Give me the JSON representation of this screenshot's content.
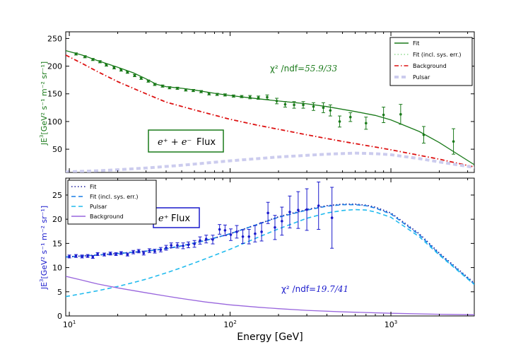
{
  "chart_data": [
    {
      "type": "line",
      "panel": "top",
      "title": "",
      "ylabel_prefix": "JE",
      "ylabel_sup": "3",
      "ylabel_units": "[GeV² s⁻¹ m⁻² sr⁻¹]",
      "xscale": "log",
      "xlim": [
        9.5,
        3300
      ],
      "ylim": [
        8,
        262
      ],
      "yticks": [
        50,
        100,
        150,
        200,
        250
      ],
      "color": "#1a7a1a",
      "annotation_chi2": "χ² /ndf",
      "annotation_chi2_value": "=55.9/33",
      "flux_box": {
        "particles": "e⁺ + e⁻",
        "word": "Flux"
      },
      "legend": {
        "position": "top-right",
        "entries": [
          {
            "label": "Fit",
            "style": "solid",
            "color": "#1a7a1a"
          },
          {
            "label": "Fit (incl. sys. err.)",
            "style": "dotted",
            "color": "#8fdc8f"
          },
          {
            "label": "Background",
            "style": "dashdot",
            "color": "#dd1111"
          },
          {
            "label": "Pulsar",
            "style": "dashed",
            "color": "#ccccee"
          }
        ]
      },
      "series": [
        {
          "name": "Fit",
          "style": "solid",
          "color": "#1a7a1a",
          "x": [
            9.5,
            12,
            15,
            20,
            25,
            30,
            35,
            40,
            50,
            60,
            80,
            100,
            150,
            200,
            300,
            400,
            600,
            800,
            1000,
            1500,
            2000,
            3300
          ],
          "y": [
            228,
            220,
            210,
            198,
            188,
            177,
            167,
            163,
            160,
            157,
            151,
            147,
            141,
            137,
            132,
            127,
            118,
            111,
            103,
            82,
            62,
            22
          ]
        },
        {
          "name": "Background",
          "style": "dashdot",
          "color": "#dd1111",
          "x": [
            9.5,
            12,
            15,
            20,
            30,
            40,
            60,
            100,
            150,
            200,
            300,
            500,
            800,
            1000,
            1500,
            2000,
            3300
          ],
          "y": [
            220,
            205,
            190,
            172,
            150,
            135,
            121,
            104,
            93,
            86,
            76,
            64,
            54,
            49,
            39,
            32,
            18
          ]
        },
        {
          "name": "Pulsar",
          "style": "dashed",
          "color": "#ccccee",
          "x": [
            9.5,
            15,
            20,
            30,
            50,
            100,
            200,
            400,
            600,
            800,
            1000,
            1500,
            2000,
            3300
          ],
          "y": [
            9,
            11,
            13,
            16,
            21,
            29,
            36,
            41,
            43,
            42,
            40,
            33,
            27,
            17
          ]
        },
        {
          "name": "Data",
          "style": "points",
          "color": "#1a7a1a",
          "x": [
            11,
            12.5,
            14,
            15.5,
            17,
            19,
            21,
            23,
            25.5,
            28,
            31,
            34,
            38,
            42,
            47,
            53,
            59,
            66,
            74,
            83,
            93,
            105,
            118,
            133,
            150,
            170,
            195,
            220,
            250,
            285,
            330,
            380,
            420,
            480,
            560,
            700,
            900,
            1150,
            1600,
            2450
          ],
          "y": [
            222,
            217,
            212,
            208,
            202,
            197,
            193,
            189,
            183,
            178,
            173,
            167,
            164,
            161,
            160,
            157,
            156,
            154,
            150,
            149,
            148,
            146,
            145,
            144,
            143,
            144,
            137,
            131,
            130,
            130,
            127,
            125,
            120,
            100,
            108,
            97,
            112,
            113,
            76,
            64
          ],
          "err": [
            2,
            2,
            2,
            2,
            2,
            2,
            2,
            2,
            2,
            2,
            2,
            2,
            2,
            2,
            2,
            2,
            2,
            2,
            2,
            2,
            2,
            2,
            2,
            3,
            3,
            4,
            5,
            5,
            6,
            6,
            7,
            9,
            10,
            10,
            8,
            11,
            14,
            18,
            15,
            23
          ]
        }
      ]
    },
    {
      "type": "line",
      "panel": "bottom",
      "title": "",
      "xlabel": "Energy [GeV]",
      "ylabel_prefix": "JE",
      "ylabel_sup": "3",
      "ylabel_units": "[GeV² s⁻¹ m⁻² sr⁻¹]",
      "xscale": "log",
      "xlim": [
        9.5,
        3300
      ],
      "ylim": [
        0,
        28.5
      ],
      "yticks": [
        0,
        5,
        10,
        15,
        20,
        25
      ],
      "xticks": [
        {
          "value": 10,
          "base": "10",
          "exp": "1"
        },
        {
          "value": 100,
          "base": "10",
          "exp": "2"
        },
        {
          "value": 1000,
          "base": "10",
          "exp": "3"
        }
      ],
      "color": "#1a1acc",
      "annotation_chi2": "χ² /ndf",
      "annotation_chi2_value": "=19.7/41",
      "flux_box": {
        "particles": "e⁺",
        "word": "Flux"
      },
      "legend": {
        "position": "top-left",
        "entries": [
          {
            "label": "Fit",
            "style": "dotted",
            "color": "#1a1a99"
          },
          {
            "label": "Fit (incl. sys. err.)",
            "style": "dashed",
            "color": "#1a7fe6"
          },
          {
            "label": "Pulsar",
            "style": "dashed",
            "color": "#22bbee"
          },
          {
            "label": "Background",
            "style": "solid",
            "color": "#9966dd"
          }
        ]
      },
      "series": [
        {
          "name": "Fit",
          "style": "dotted",
          "color": "#1a1a99",
          "x": [
            9.5,
            12,
            15,
            20,
            30,
            40,
            50,
            70,
            100,
            150,
            200,
            300,
            400,
            500,
            600,
            700,
            800,
            1000,
            1500,
            2000,
            3300
          ],
          "y": [
            12.2,
            12.4,
            12.6,
            12.9,
            13.4,
            13.9,
            14.5,
            15.6,
            17.0,
            19.0,
            20.5,
            22.0,
            22.8,
            23.1,
            23.1,
            22.9,
            22.5,
            21.3,
            17.0,
            13.0,
            6.8
          ]
        },
        {
          "name": "Fit (incl. sys. err.)",
          "style": "dashed",
          "color": "#1a7fe6",
          "x": [
            9.5,
            12,
            15,
            20,
            30,
            40,
            50,
            70,
            100,
            150,
            200,
            300,
            400,
            500,
            600,
            700,
            800,
            1000,
            1500,
            2000,
            3300
          ],
          "y": [
            12.2,
            12.4,
            12.6,
            12.9,
            13.4,
            13.9,
            14.5,
            15.6,
            17.0,
            19.0,
            20.4,
            21.9,
            22.7,
            23.0,
            23.0,
            22.8,
            22.3,
            21.1,
            16.8,
            12.8,
            6.6
          ]
        },
        {
          "name": "Pulsar",
          "style": "dashed",
          "color": "#22bbee",
          "x": [
            9.5,
            12,
            15,
            20,
            25,
            30,
            40,
            50,
            70,
            100,
            150,
            200,
            300,
            400,
            500,
            600,
            700,
            800,
            1000,
            1500,
            2000,
            3300
          ],
          "y": [
            4.0,
            4.6,
            5.2,
            6.1,
            6.9,
            7.6,
            8.9,
            10.0,
            11.8,
            13.8,
            16.3,
            18.0,
            20.2,
            21.3,
            21.8,
            22.0,
            21.9,
            21.5,
            20.4,
            16.4,
            12.6,
            6.5
          ]
        },
        {
          "name": "Background",
          "style": "solid",
          "color": "#9966dd",
          "x": [
            9.5,
            12,
            15,
            20,
            30,
            40,
            50,
            70,
            100,
            150,
            200,
            300,
            500,
            1000,
            2000,
            3300
          ],
          "y": [
            8.2,
            7.4,
            6.6,
            5.8,
            4.8,
            4.1,
            3.6,
            2.9,
            2.3,
            1.8,
            1.5,
            1.15,
            0.85,
            0.55,
            0.35,
            0.25
          ]
        },
        {
          "name": "Data",
          "style": "points",
          "color": "#1a1acc",
          "x": [
            10,
            11,
            12,
            13,
            14,
            15,
            16.5,
            18,
            19.5,
            21,
            23,
            25,
            27,
            29,
            31.5,
            34,
            37,
            40,
            43,
            47,
            51,
            55,
            60,
            65,
            71,
            78,
            86,
            93,
            101,
            110,
            120,
            131,
            143,
            157,
            172,
            190,
            210,
            235,
            265,
            300,
            355,
            430
          ],
          "y": [
            12.3,
            12.4,
            12.3,
            12.4,
            12.2,
            12.8,
            12.7,
            12.9,
            12.8,
            13.0,
            12.7,
            13.2,
            13.4,
            13.0,
            13.5,
            13.4,
            13.7,
            14.1,
            14.6,
            14.6,
            14.5,
            14.7,
            14.9,
            15.6,
            15.9,
            15.8,
            17.9,
            17.7,
            16.8,
            17.4,
            16.4,
            16.4,
            17.0,
            17.4,
            21.3,
            18.3,
            19.6,
            21.5,
            21.9,
            22.0,
            22.8,
            20.3
          ],
          "err": [
            0.3,
            0.3,
            0.3,
            0.3,
            0.3,
            0.3,
            0.3,
            0.3,
            0.3,
            0.3,
            0.3,
            0.35,
            0.35,
            0.4,
            0.4,
            0.4,
            0.45,
            0.5,
            0.5,
            0.55,
            0.6,
            0.6,
            0.7,
            0.75,
            0.8,
            0.9,
            1.0,
            1.1,
            1.2,
            1.3,
            1.4,
            1.5,
            1.7,
            1.9,
            2.2,
            2.5,
            2.9,
            3.3,
            3.8,
            4.3,
            4.9,
            6.3
          ]
        }
      ]
    }
  ]
}
